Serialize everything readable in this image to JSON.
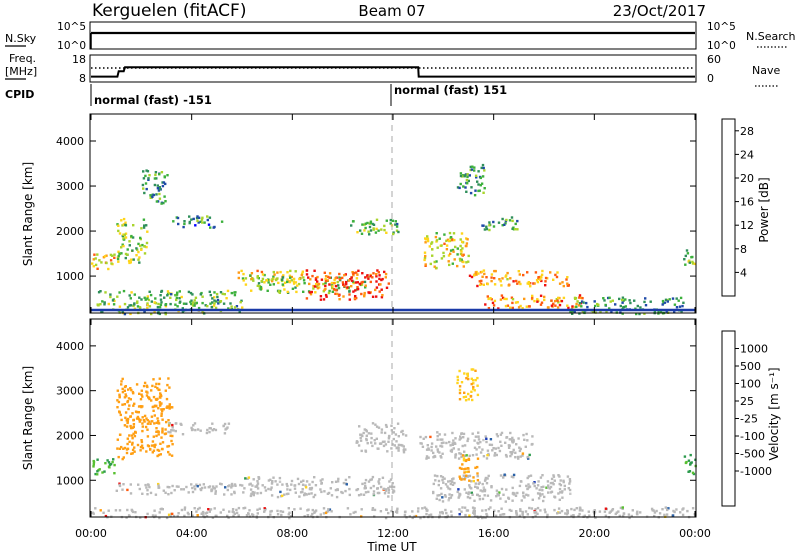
{
  "header": {
    "radar": "Kerguelen (fitACF)",
    "beam": "Beam 07",
    "date": "23/Oct/2017"
  },
  "top_panels": {
    "nsky_label": "N.Sky",
    "nsky_ticks": [
      "10^5",
      "10^0"
    ],
    "nsearch_label": "N.Search",
    "nsearch_ticks": [
      "10^5",
      "10^0"
    ],
    "freq_label_1": "Freq.",
    "freq_label_2": "[MHz]",
    "freq_ticks": [
      "18",
      "8"
    ],
    "nave_label": "Nave",
    "nave_ticks": [
      "60",
      "0"
    ],
    "cpid_label": "CPID",
    "cpid_segments": [
      {
        "label": "normal (fast) -151",
        "start_hour": 0,
        "end_hour": 12
      },
      {
        "label": "normal (fast) 151",
        "start_hour": 12,
        "end_hour": 24
      }
    ],
    "freq_trace": [
      {
        "hour": 0.0,
        "mhz": 10
      },
      {
        "hour": 1.05,
        "mhz": 10
      },
      {
        "hour": 1.1,
        "mhz": 12
      },
      {
        "hour": 1.3,
        "mhz": 12
      },
      {
        "hour": 1.35,
        "mhz": 13.5
      },
      {
        "hour": 13.0,
        "mhz": 13.5
      },
      {
        "hour": 13.02,
        "mhz": 10
      },
      {
        "hour": 24.0,
        "mhz": 10
      }
    ],
    "nave_level": 12
  },
  "colors": {
    "power": [
      "#0000ff",
      "#1f4aa8",
      "#2f8f5a",
      "#3cb03c",
      "#a9d42c",
      "#ffd51a",
      "#ff9a14",
      "#ff5a10",
      "#ee1010"
    ],
    "velocity": [
      "#e81111",
      "#ff5c12",
      "#ff9f13",
      "#ffd420",
      "#c8c8c8",
      "#c8c8c8",
      "#58c030",
      "#2c9a4d",
      "#2b62a8",
      "#1f3fb8"
    ],
    "velocity_ground": "#b9b9b9"
  },
  "chart_data": [
    {
      "type": "heatmap",
      "panel": "power",
      "ylabel": "Slant Range [km]",
      "y_ticks": [
        1000,
        2000,
        3000,
        4000
      ],
      "ylim": [
        180,
        4600
      ],
      "x_ticks": [
        "00:00",
        "04:00",
        "08:00",
        "12:00",
        "16:00",
        "20:00",
        "00:00"
      ],
      "xlim_hours": [
        0,
        24
      ],
      "colorbar_label": "Power [dB]",
      "colorbar_ticks": [
        "4",
        "8",
        "12",
        "16",
        "20",
        "24",
        "28"
      ],
      "colorbar_range": [
        0,
        30
      ],
      "echo_regions": [
        {
          "t0": 0.0,
          "t1": 0.9,
          "r0": 1150,
          "r1": 1550,
          "power": 20
        },
        {
          "t0": 1.0,
          "t1": 2.2,
          "r0": 1300,
          "r1": 2300,
          "power": 14
        },
        {
          "t0": 2.0,
          "t1": 3.0,
          "r0": 2600,
          "r1": 3400,
          "power": 10
        },
        {
          "t0": 3.2,
          "t1": 5.2,
          "r0": 2100,
          "r1": 2350,
          "power": 9
        },
        {
          "t0": 0.1,
          "t1": 6.0,
          "r0": 180,
          "r1": 700,
          "power": 12
        },
        {
          "t0": 5.8,
          "t1": 8.4,
          "r0": 900,
          "r1": 1150,
          "power": 18
        },
        {
          "t0": 6.0,
          "t1": 11.0,
          "r0": 650,
          "r1": 1000,
          "power": 14
        },
        {
          "t0": 8.5,
          "t1": 11.8,
          "r0": 500,
          "r1": 1150,
          "power": 26
        },
        {
          "t0": 10.2,
          "t1": 12.2,
          "r0": 1950,
          "r1": 2300,
          "power": 12
        },
        {
          "t0": 13.2,
          "t1": 15.0,
          "r0": 1200,
          "r1": 2000,
          "power": 18
        },
        {
          "t0": 14.5,
          "t1": 15.6,
          "r0": 2800,
          "r1": 3500,
          "power": 10
        },
        {
          "t0": 15.0,
          "t1": 19.0,
          "r0": 800,
          "r1": 1150,
          "power": 22
        },
        {
          "t0": 15.5,
          "t1": 17.0,
          "r0": 2050,
          "r1": 2350,
          "power": 9
        },
        {
          "t0": 15.5,
          "t1": 19.5,
          "r0": 300,
          "r1": 600,
          "power": 22
        },
        {
          "t0": 19.0,
          "t1": 23.5,
          "r0": 180,
          "r1": 550,
          "power": 10
        },
        {
          "t0": 23.5,
          "t1": 24.0,
          "r0": 1150,
          "r1": 1600,
          "power": 14
        }
      ]
    },
    {
      "type": "heatmap",
      "panel": "velocity",
      "ylabel": "Slant Range [km]",
      "y_ticks": [
        1000,
        2000,
        3000,
        4000
      ],
      "ylim": [
        180,
        4600
      ],
      "x_ticks": [
        "00:00",
        "04:00",
        "08:00",
        "12:00",
        "16:00",
        "20:00",
        "00:00"
      ],
      "xlim_hours": [
        0,
        24
      ],
      "xlabel": "Time UT",
      "colorbar_label": "Velocity [m s⁻¹]",
      "colorbar_ticks": [
        "1000",
        "500",
        "100",
        "25",
        "-25",
        "-100",
        "-500",
        "-1000"
      ],
      "echo_regions": [
        {
          "t0": 0.0,
          "t1": 0.9,
          "r0": 1150,
          "r1": 1550,
          "velocity": 100,
          "ground": false
        },
        {
          "t0": 1.0,
          "t1": 3.2,
          "r0": 1500,
          "r1": 3300,
          "velocity": -300,
          "ground": false
        },
        {
          "t0": 3.0,
          "t1": 5.5,
          "r0": 2050,
          "r1": 2300,
          "velocity": 0,
          "ground": true
        },
        {
          "t0": 0.8,
          "t1": 6.0,
          "r0": 700,
          "r1": 950,
          "velocity": 0,
          "ground": true
        },
        {
          "t0": 6.0,
          "t1": 12.0,
          "r0": 650,
          "r1": 1100,
          "velocity": 0,
          "ground": true
        },
        {
          "t0": 10.5,
          "t1": 12.5,
          "r0": 1650,
          "r1": 2300,
          "velocity": 0,
          "ground": true
        },
        {
          "t0": 13.0,
          "t1": 17.5,
          "r0": 1500,
          "r1": 2100,
          "velocity": 0,
          "ground": true
        },
        {
          "t0": 14.5,
          "t1": 15.4,
          "r0": 2800,
          "r1": 3500,
          "velocity": -80,
          "ground": false
        },
        {
          "t0": 13.5,
          "t1": 19.0,
          "r0": 550,
          "r1": 1150,
          "velocity": 0,
          "ground": true
        },
        {
          "t0": 14.6,
          "t1": 15.4,
          "r0": 1000,
          "r1": 1600,
          "velocity": -150,
          "ground": false
        },
        {
          "t0": 0.0,
          "t1": 24.0,
          "r0": 180,
          "r1": 420,
          "velocity": 0,
          "ground": true
        },
        {
          "t0": 23.5,
          "t1": 24.0,
          "r0": 1150,
          "r1": 1600,
          "velocity": 150,
          "ground": false
        }
      ]
    }
  ]
}
